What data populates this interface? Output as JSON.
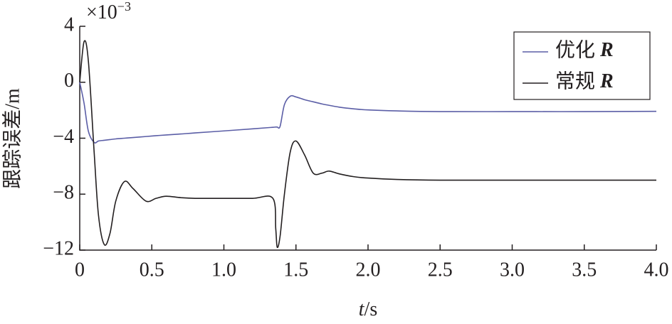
{
  "chart_data": {
    "type": "line",
    "x_label": {
      "italic": "t",
      "rest": "/s"
    },
    "y_label": "跟踪误差/m",
    "y_multiplier": {
      "base": "×10",
      "exponent": "−3"
    },
    "x": [
      0,
      0.03,
      0.06,
      0.1,
      0.13,
      0.17,
      0.21,
      0.25,
      0.31,
      0.37,
      0.46,
      0.53,
      0.6,
      0.7,
      0.8,
      1.0,
      1.2,
      1.34,
      1.36,
      1.37,
      1.39,
      1.42,
      1.46,
      1.5,
      1.56,
      1.62,
      1.68,
      1.73,
      1.8,
      1.9,
      2.0,
      2.2,
      2.5,
      3.0,
      3.5,
      4.0
    ],
    "series": [
      {
        "name": "优化 R",
        "color": "#5b5ea6",
        "values": [
          0,
          -1.5,
          -3.5,
          -4.3,
          -4.2,
          -4.15,
          -4.1,
          -4.05,
          -4.0,
          -3.95,
          -3.88,
          -3.82,
          -3.77,
          -3.7,
          -3.62,
          -3.48,
          -3.33,
          -3.22,
          -3.2,
          -3.2,
          -3.15,
          -1.6,
          -1.0,
          -1.05,
          -1.25,
          -1.4,
          -1.55,
          -1.65,
          -1.78,
          -1.9,
          -1.98,
          -2.05,
          -2.1,
          -2.1,
          -2.1,
          -2.08
        ]
      },
      {
        "name": "常规 R",
        "color": "#231f20",
        "values": [
          0,
          2.9,
          1.5,
          -5,
          -9.5,
          -11.6,
          -10.8,
          -8.5,
          -7.1,
          -7.6,
          -8.5,
          -8.3,
          -8.15,
          -8.25,
          -8.3,
          -8.3,
          -8.3,
          -8.3,
          -10.5,
          -11.8,
          -11,
          -8,
          -5,
          -4.2,
          -5.2,
          -6.5,
          -6.5,
          -6.35,
          -6.55,
          -6.75,
          -6.85,
          -6.95,
          -7.0,
          -7.0,
          -7.0,
          -7.0
        ]
      }
    ],
    "xlim": [
      0,
      4
    ],
    "xticks": [
      0,
      0.5,
      {
        "value": 1,
        "label": "1.0"
      },
      1.5,
      {
        "value": 2,
        "label": "2.0"
      },
      2.5,
      {
        "value": 3,
        "label": "3.0"
      },
      3.5,
      {
        "value": 4,
        "label": "4.0"
      }
    ],
    "ylim": [
      -12,
      4
    ],
    "yticks": [
      {
        "value": -12,
        "label": "−12"
      },
      {
        "value": -8,
        "label": "−8"
      },
      {
        "value": -4,
        "label": "−4"
      },
      0,
      4
    ],
    "legend": "upper right"
  }
}
